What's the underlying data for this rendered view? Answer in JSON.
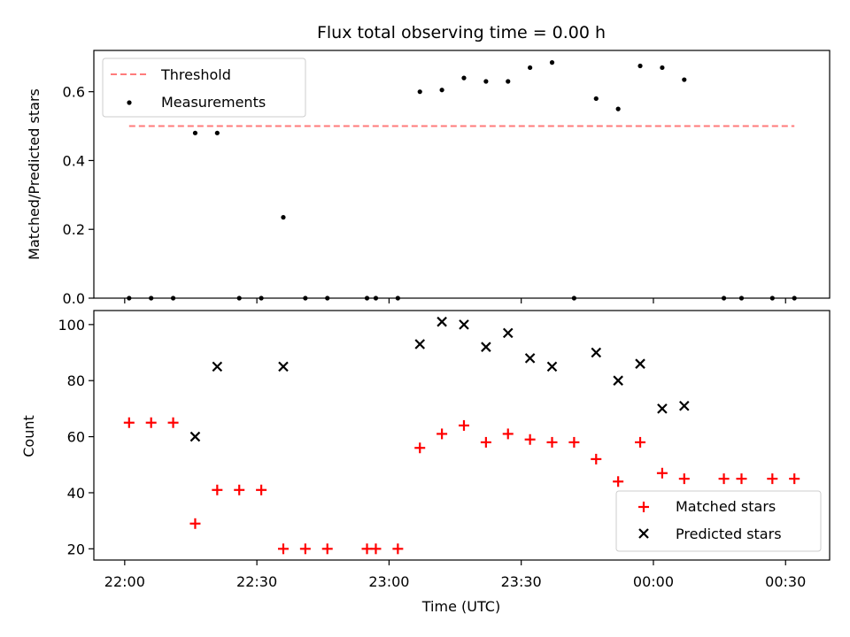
{
  "chart_data": [
    {
      "type": "scatter",
      "title": "Flux total observing time = 0.00 h",
      "xlabel": "",
      "ylabel": "Matched/Predicted stars",
      "ylim": [
        0,
        0.72
      ],
      "yticks": [
        0.0,
        0.2,
        0.4,
        0.6
      ],
      "yticklabels": [
        "0.0",
        "0.2",
        "0.4",
        "0.6"
      ],
      "x_unit": "minutes since 22:00 UTC",
      "threshold": {
        "name": "Threshold",
        "y": 0.5,
        "x_range": [
          1,
          152
        ],
        "color": "#ff7b7b",
        "style": "dashed"
      },
      "series": [
        {
          "name": "Measurements",
          "color": "#000000",
          "marker": "dot",
          "x": [
            1,
            6,
            11,
            16,
            21,
            26,
            31,
            36,
            41,
            46,
            55,
            57,
            62,
            67,
            72,
            77,
            82,
            87,
            92,
            97,
            102,
            107,
            112,
            117,
            122,
            127,
            136,
            140,
            147,
            152
          ],
          "y": [
            0.0,
            0.0,
            0.0,
            0.48,
            0.48,
            0.0,
            0.0,
            0.235,
            0.0,
            0.0,
            0.0,
            0.0,
            0.0,
            0.6,
            0.605,
            0.64,
            0.63,
            0.63,
            0.67,
            0.685,
            0.0,
            0.58,
            0.55,
            0.675,
            0.67,
            0.635,
            0.0,
            0.0,
            0.0,
            0.0
          ]
        }
      ],
      "legend": {
        "position": "top-left",
        "entries": [
          "Threshold",
          "Measurements"
        ]
      }
    },
    {
      "type": "scatter",
      "title": "",
      "xlabel": "Time (UTC)",
      "ylabel": "Count",
      "xlim": [
        -7,
        160
      ],
      "ylim": [
        16,
        105
      ],
      "xticks": [
        0,
        30,
        60,
        90,
        120,
        150
      ],
      "xticklabels": [
        "22:00",
        "22:30",
        "23:00",
        "23:30",
        "00:00",
        "00:30"
      ],
      "yticks": [
        20,
        40,
        60,
        80,
        100
      ],
      "yticklabels": [
        "20",
        "40",
        "60",
        "80",
        "100"
      ],
      "series": [
        {
          "name": "Matched stars",
          "color": "#ff0000",
          "marker": "plus",
          "x": [
            1,
            6,
            11,
            16,
            21,
            26,
            31,
            36,
            41,
            46,
            55,
            57,
            62,
            67,
            72,
            77,
            82,
            87,
            92,
            97,
            102,
            107,
            112,
            117,
            122,
            127,
            136,
            140,
            147,
            152
          ],
          "y": [
            65,
            65,
            65,
            29,
            41,
            41,
            41,
            20,
            20,
            20,
            20,
            20,
            20,
            56,
            61,
            64,
            58,
            61,
            59,
            58,
            58,
            52,
            44,
            58,
            47,
            45,
            45,
            45,
            45,
            45
          ]
        },
        {
          "name": "Predicted stars",
          "color": "#000000",
          "marker": "x",
          "x": [
            16,
            21,
            36,
            67,
            72,
            77,
            82,
            87,
            92,
            97,
            107,
            112,
            117,
            122,
            127
          ],
          "y": [
            60,
            85,
            85,
            93,
            101,
            100,
            92,
            97,
            88,
            85,
            90,
            80,
            86,
            70,
            71
          ]
        }
      ],
      "legend": {
        "position": "bottom-right",
        "entries": [
          "Matched stars",
          "Predicted stars"
        ]
      }
    }
  ]
}
